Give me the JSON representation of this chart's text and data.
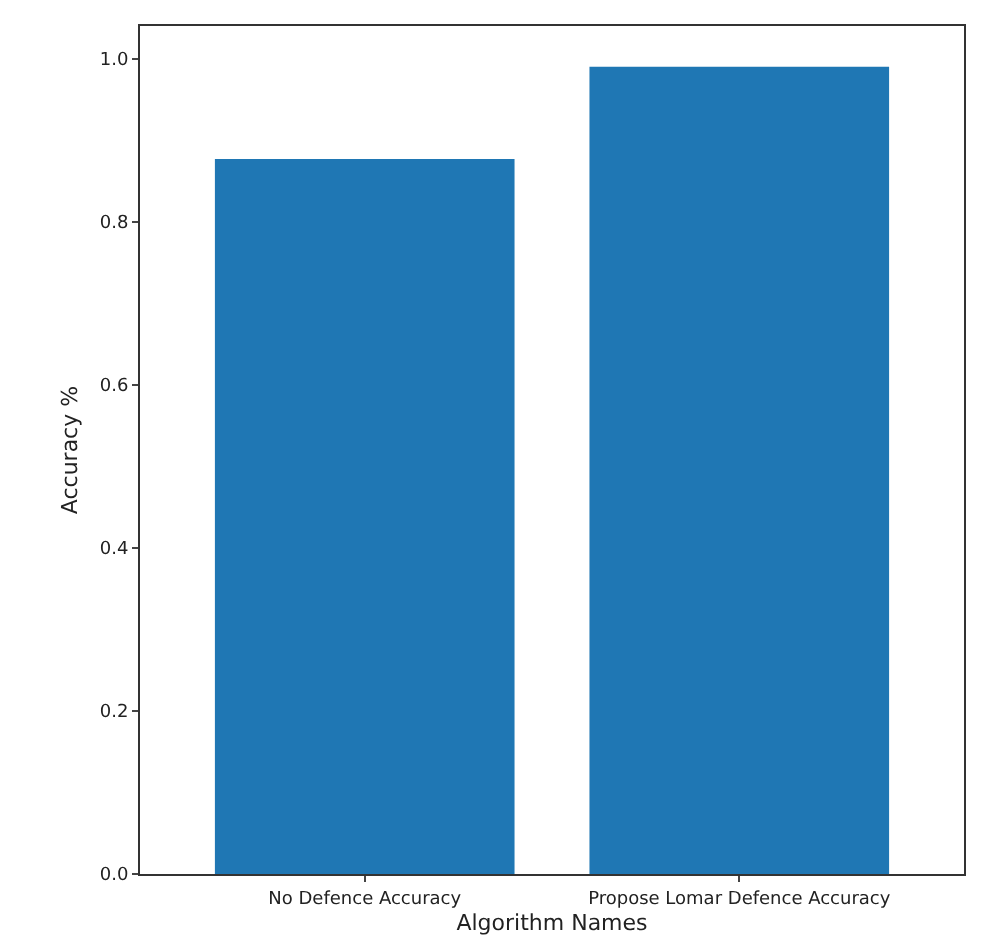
{
  "chart_data": {
    "type": "bar",
    "xlabel": "Algorithm Names",
    "ylabel": "Accuracy %",
    "categories": [
      "No Defence Accuracy",
      "Propose Lomar Defence Accuracy"
    ],
    "values": [
      0.877,
      0.99
    ],
    "color": "#1f77b4",
    "ylim": [
      0,
      1.04
    ],
    "yticks": [
      {
        "value": 0,
        "label": "0.0"
      },
      {
        "value": 0.2,
        "label": "0.2"
      },
      {
        "value": 0.4,
        "label": "0.4"
      },
      {
        "value": 0.6,
        "label": "0.6"
      },
      {
        "value": 0.8,
        "label": "0.8"
      },
      {
        "value": 1.0,
        "label": "1.0"
      }
    ]
  }
}
